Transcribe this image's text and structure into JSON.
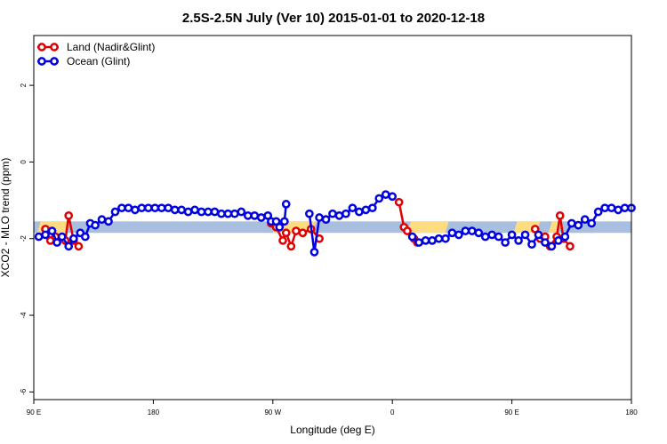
{
  "chart_data": {
    "type": "line",
    "title": "2.5S-2.5N July (Ver 10)   2015-01-01 to 2020-12-18",
    "xlabel": "Longitude (deg E)",
    "ylabel": "XCO2 - MLO trend (ppm)",
    "xlim": [
      90,
      450
    ],
    "ylim": [
      -6.2,
      3.3
    ],
    "x_ticks": [
      {
        "value": 90,
        "label": "90 E"
      },
      {
        "value": 162,
        "label": "180"
      },
      {
        "value": 234,
        "label": "90 W"
      },
      {
        "value": 306,
        "label": "0"
      },
      {
        "value": 378,
        "label": "90 E"
      },
      {
        "value": 450,
        "label": "180"
      }
    ],
    "y_ticks": [
      {
        "value": 2,
        "label": "2"
      },
      {
        "value": 0,
        "label": "0"
      },
      {
        "value": -2,
        "label": "-2"
      },
      {
        "value": -4,
        "label": "-4"
      },
      {
        "value": -6,
        "label": "-6"
      }
    ],
    "legend": {
      "position": "top-left"
    },
    "band": {
      "y_min": -1.85,
      "y_max": -1.55,
      "color": "#a8bfe0"
    },
    "land_shading": {
      "color": "#ffdc80",
      "spans": [
        [
          92,
          112
        ],
        [
          234,
          260
        ],
        [
          315,
          340
        ],
        [
          379,
          395
        ],
        [
          400,
          408
        ]
      ]
    },
    "series": [
      {
        "name": "Land (Nadir&Glint)",
        "color": "#e00000",
        "segments": [
          [
            [
              97,
              -1.75
            ],
            [
              100,
              -2.05
            ],
            [
              103,
              -1.95
            ],
            [
              109,
              -2.05
            ],
            [
              111,
              -1.4
            ],
            [
              114,
              -2.05
            ],
            [
              117,
              -2.2
            ]
          ],
          [
            [
              233,
              -1.6
            ],
            [
              236,
              -1.7
            ],
            [
              240,
              -2.05
            ],
            [
              242,
              -1.85
            ],
            [
              245,
              -2.2
            ],
            [
              248,
              -1.8
            ],
            [
              252,
              -1.85
            ],
            [
              257,
              -1.75
            ],
            [
              262,
              -2.0
            ]
          ],
          [
            [
              310,
              -1.05
            ],
            [
              313,
              -1.7
            ],
            [
              315,
              -1.8
            ],
            [
              319,
              -2.0
            ],
            [
              321,
              -2.1
            ]
          ],
          [
            [
              392,
              -1.75
            ],
            [
              395,
              -2.0
            ],
            [
              398,
              -1.95
            ],
            [
              401,
              -2.2
            ],
            [
              405,
              -1.95
            ],
            [
              407,
              -1.4
            ],
            [
              409,
              -2.0
            ],
            [
              413,
              -2.2
            ]
          ]
        ]
      },
      {
        "name": "Ocean (Glint)",
        "color": "#0000e0",
        "segments": [
          [
            [
              93,
              -1.95
            ],
            [
              97,
              -1.9
            ],
            [
              101,
              -1.8
            ],
            [
              104,
              -2.1
            ],
            [
              107,
              -1.95
            ],
            [
              111,
              -2.2
            ],
            [
              114,
              -2.0
            ],
            [
              118,
              -1.85
            ],
            [
              121,
              -1.95
            ],
            [
              124,
              -1.6
            ],
            [
              127,
              -1.65
            ],
            [
              131,
              -1.5
            ],
            [
              135,
              -1.55
            ],
            [
              139,
              -1.3
            ],
            [
              143,
              -1.2
            ],
            [
              147,
              -1.2
            ],
            [
              151,
              -1.25
            ],
            [
              155,
              -1.2
            ],
            [
              159,
              -1.2
            ],
            [
              163,
              -1.2
            ],
            [
              167,
              -1.2
            ],
            [
              171,
              -1.2
            ],
            [
              175,
              -1.25
            ],
            [
              179,
              -1.25
            ],
            [
              183,
              -1.3
            ],
            [
              187,
              -1.25
            ],
            [
              191,
              -1.3
            ],
            [
              195,
              -1.3
            ],
            [
              199,
              -1.3
            ],
            [
              203,
              -1.35
            ],
            [
              207,
              -1.35
            ],
            [
              211,
              -1.35
            ],
            [
              215,
              -1.3
            ],
            [
              219,
              -1.4
            ],
            [
              223,
              -1.4
            ],
            [
              227,
              -1.45
            ],
            [
              231,
              -1.4
            ],
            [
              233,
              -1.55
            ],
            [
              236,
              -1.55
            ],
            [
              238,
              -1.7
            ],
            [
              241,
              -1.55
            ],
            [
              242,
              -1.1
            ]
          ],
          [
            [
              256,
              -1.35
            ],
            [
              259,
              -2.35
            ],
            [
              262,
              -1.45
            ],
            [
              266,
              -1.5
            ],
            [
              270,
              -1.35
            ],
            [
              274,
              -1.4
            ],
            [
              278,
              -1.35
            ],
            [
              282,
              -1.2
            ],
            [
              286,
              -1.3
            ],
            [
              290,
              -1.25
            ],
            [
              294,
              -1.2
            ],
            [
              298,
              -0.95
            ],
            [
              302,
              -0.85
            ],
            [
              306,
              -0.9
            ]
          ],
          [
            [
              318,
              -1.95
            ],
            [
              322,
              -2.1
            ],
            [
              326,
              -2.05
            ],
            [
              330,
              -2.05
            ],
            [
              334,
              -2.0
            ],
            [
              338,
              -2.0
            ],
            [
              342,
              -1.85
            ],
            [
              346,
              -1.9
            ],
            [
              350,
              -1.8
            ],
            [
              354,
              -1.8
            ],
            [
              358,
              -1.85
            ],
            [
              362,
              -1.95
            ],
            [
              366,
              -1.9
            ],
            [
              370,
              -1.95
            ],
            [
              374,
              -2.1
            ],
            [
              378,
              -1.9
            ],
            [
              382,
              -2.05
            ],
            [
              386,
              -1.9
            ],
            [
              390,
              -2.15
            ],
            [
              394,
              -1.9
            ],
            [
              398,
              -2.1
            ],
            [
              402,
              -2.2
            ],
            [
              406,
              -2.05
            ],
            [
              410,
              -1.95
            ],
            [
              414,
              -1.6
            ],
            [
              418,
              -1.65
            ],
            [
              422,
              -1.5
            ],
            [
              426,
              -1.6
            ],
            [
              430,
              -1.3
            ],
            [
              434,
              -1.2
            ],
            [
              438,
              -1.2
            ],
            [
              442,
              -1.25
            ],
            [
              446,
              -1.2
            ],
            [
              450,
              -1.2
            ]
          ]
        ]
      }
    ]
  }
}
